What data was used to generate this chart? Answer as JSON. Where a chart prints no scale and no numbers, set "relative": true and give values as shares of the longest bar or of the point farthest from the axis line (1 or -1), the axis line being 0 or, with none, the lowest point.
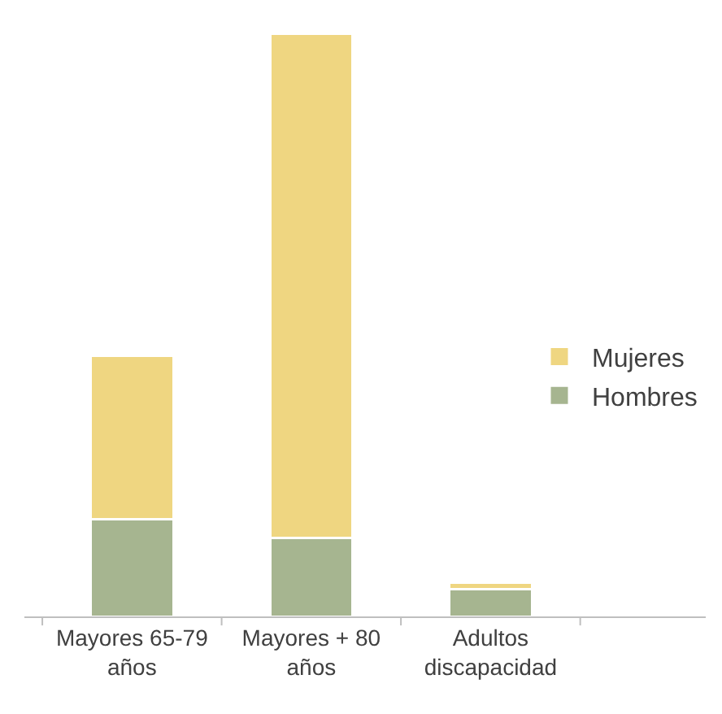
{
  "chart_data": {
    "type": "bar",
    "stacked": true,
    "relative": true,
    "categories": [
      "Mayores 65-79 años",
      "Mayores + 80 años",
      "Adultos discapacidad"
    ],
    "series": [
      {
        "name": "Hombres",
        "color": "#a6b590",
        "values": [
          0.167,
          0.134,
          0.047
        ]
      },
      {
        "name": "Mujeres",
        "color": "#efd681",
        "values": [
          0.281,
          0.866,
          0.011
        ]
      }
    ],
    "legend": "right"
  }
}
